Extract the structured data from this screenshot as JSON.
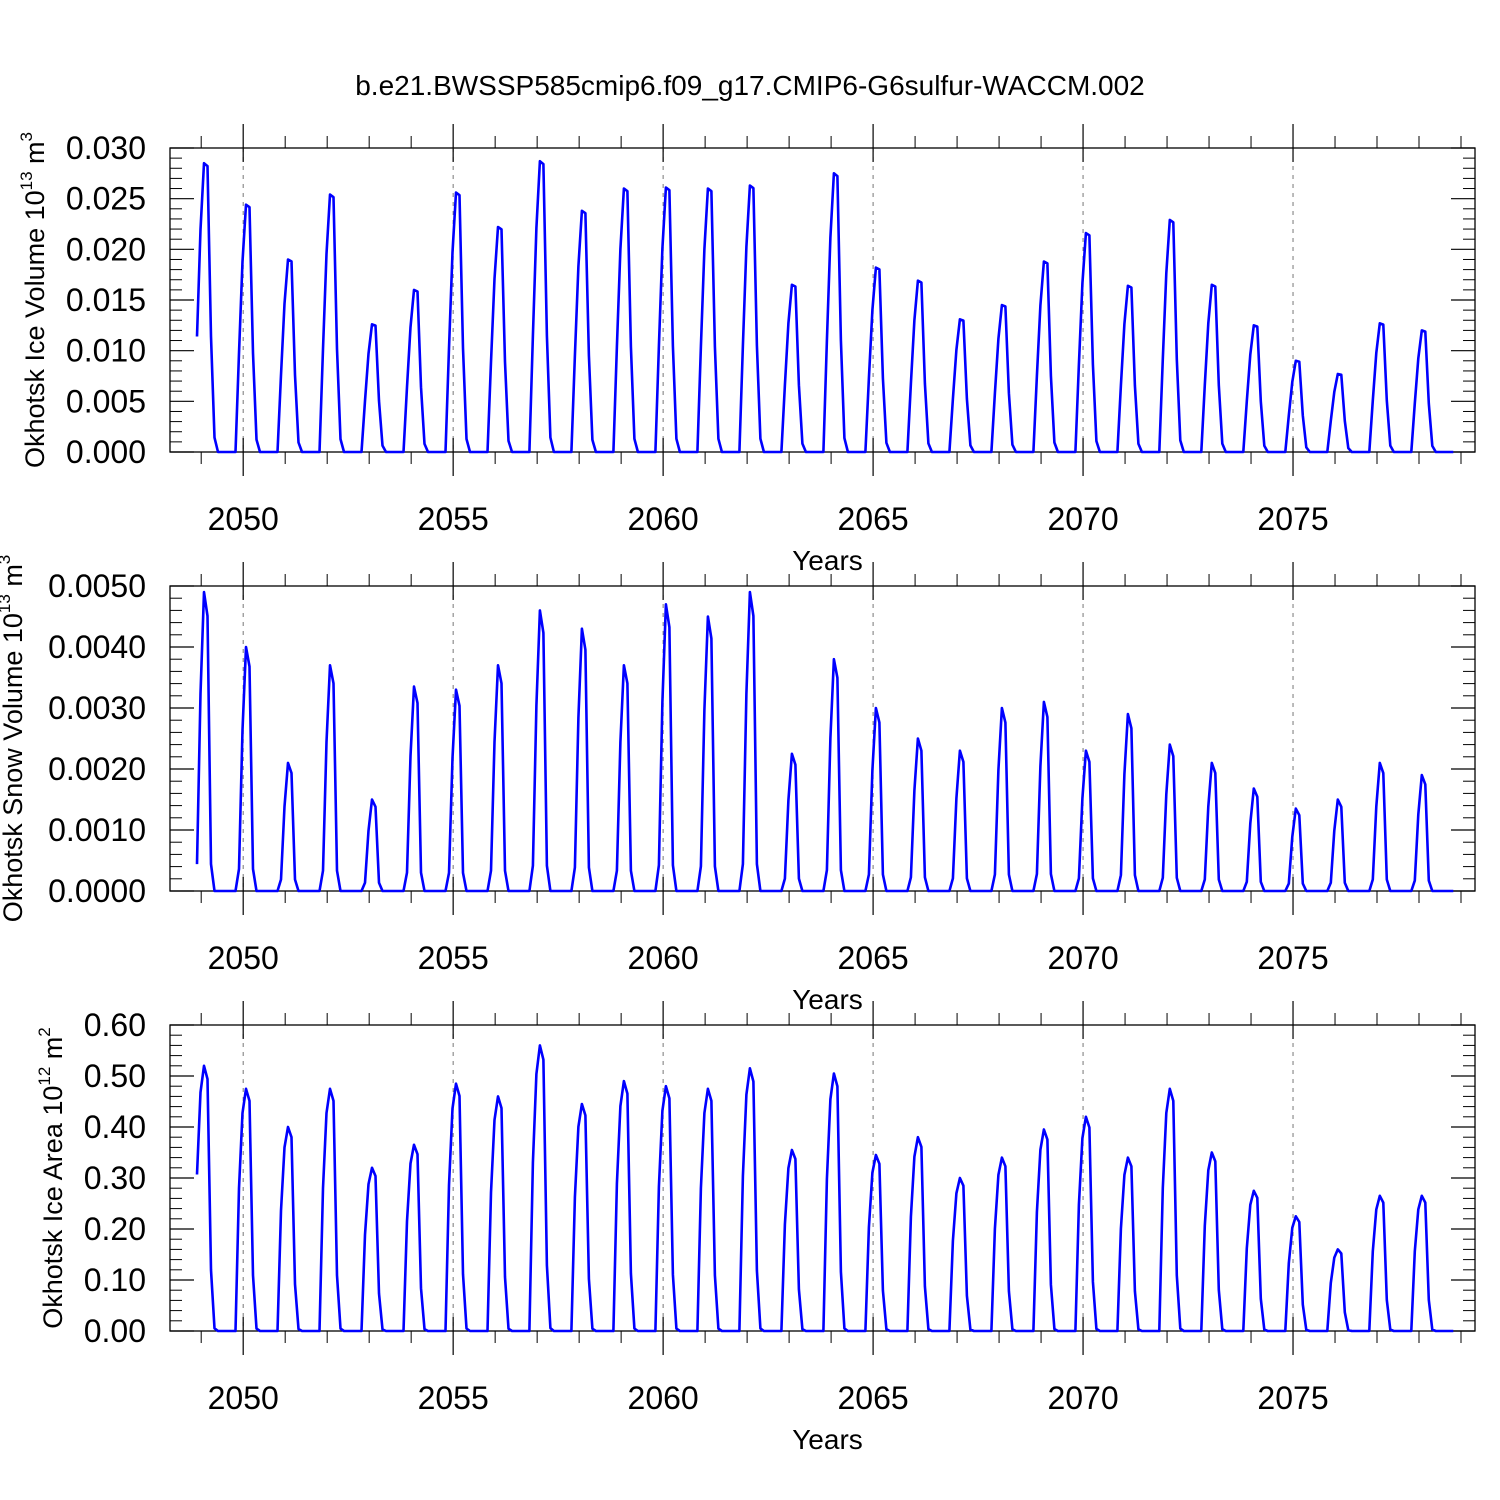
{
  "figure_title": "b.e21.BWSSP585cmip6.f09_g17.CMIP6-G6sulfur-WACCM.002",
  "colors": {
    "line": "#0000ff",
    "axis": "#000000",
    "grid": "#777777"
  },
  "chart_data": [
    {
      "type": "line",
      "title": "b.e21.BWSSP585cmip6.f09_g17.CMIP6-G6sulfur-WACCM.002",
      "ylabel": "Okhotsk Ice Volume 10",
      "ylabel_exp": "13",
      "ylabel_unit": " m",
      "ylabel_unit_exp": "3",
      "xlabel": "Years",
      "xlim": [
        2048.9,
        2079.0
      ],
      "ylim": [
        0,
        0.03
      ],
      "yticks": [
        0,
        0.005,
        0.01,
        0.015,
        0.02,
        0.025,
        0.03
      ],
      "ytick_labels": [
        "0.000",
        "0.005",
        "0.010",
        "0.015",
        "0.020",
        "0.025",
        "0.030"
      ],
      "xticks": [
        2050,
        2055,
        2060,
        2065,
        2070,
        2075
      ],
      "xtick_labels": [
        "2050",
        "2055",
        "2060",
        "2065",
        "2070",
        "2075"
      ],
      "start_year": 2048.9,
      "grid": "vertical-dashed",
      "peaks": [
        0.0285,
        0.0244,
        0.019,
        0.0254,
        0.0126,
        0.016,
        0.0256,
        0.0222,
        0.0287,
        0.0238,
        0.026,
        0.0261,
        0.026,
        0.0263,
        0.0165,
        0.0275,
        0.0182,
        0.0169,
        0.0131,
        0.0145,
        0.0188,
        0.0216,
        0.0164,
        0.0229,
        0.0165,
        0.0125,
        0.009,
        0.0077,
        0.0127,
        0.012
      ]
    },
    {
      "type": "line",
      "title": "",
      "ylabel": "Okhotsk Snow Volume 10",
      "ylabel_exp": "13",
      "ylabel_unit": " m",
      "ylabel_unit_exp": "3",
      "xlabel": "Years",
      "xlim": [
        2048.9,
        2079.0
      ],
      "ylim": [
        0,
        0.005
      ],
      "yticks": [
        0,
        0.001,
        0.002,
        0.003,
        0.004,
        0.005
      ],
      "ytick_labels": [
        "0.0000",
        "0.0010",
        "0.0020",
        "0.0030",
        "0.0040",
        "0.0050"
      ],
      "xticks": [
        2050,
        2055,
        2060,
        2065,
        2070,
        2075
      ],
      "xtick_labels": [
        "2050",
        "2055",
        "2060",
        "2065",
        "2070",
        "2075"
      ],
      "start_year": 2048.9,
      "grid": "vertical-dashed",
      "peaks": [
        0.0049,
        0.004,
        0.0021,
        0.0037,
        0.0015,
        0.00335,
        0.0033,
        0.0037,
        0.0046,
        0.0043,
        0.0037,
        0.0047,
        0.0045,
        0.0049,
        0.00225,
        0.0038,
        0.003,
        0.0025,
        0.0023,
        0.003,
        0.0031,
        0.0023,
        0.0029,
        0.0024,
        0.0021,
        0.00168,
        0.00135,
        0.0015,
        0.0021,
        0.0019
      ]
    },
    {
      "type": "line",
      "title": "",
      "ylabel": "Okhotsk Ice Area 10",
      "ylabel_exp": "12",
      "ylabel_unit": " m",
      "ylabel_unit_exp": "2",
      "xlabel": "Years",
      "xlim": [
        2048.9,
        2079.0
      ],
      "ylim": [
        0,
        0.6
      ],
      "yticks": [
        0,
        0.1,
        0.2,
        0.3,
        0.4,
        0.5,
        0.6
      ],
      "ytick_labels": [
        "0.00",
        "0.10",
        "0.20",
        "0.30",
        "0.40",
        "0.50",
        "0.60"
      ],
      "xticks": [
        2050,
        2055,
        2060,
        2065,
        2070,
        2075
      ],
      "xtick_labels": [
        "2050",
        "2055",
        "2060",
        "2065",
        "2070",
        "2075"
      ],
      "start_year": 2048.9,
      "grid": "vertical-dashed",
      "peaks": [
        0.52,
        0.475,
        0.4,
        0.475,
        0.32,
        0.365,
        0.485,
        0.46,
        0.56,
        0.445,
        0.49,
        0.48,
        0.475,
        0.515,
        0.355,
        0.505,
        0.345,
        0.38,
        0.3,
        0.34,
        0.395,
        0.42,
        0.34,
        0.475,
        0.35,
        0.275,
        0.225,
        0.16,
        0.265,
        0.265
      ]
    }
  ]
}
